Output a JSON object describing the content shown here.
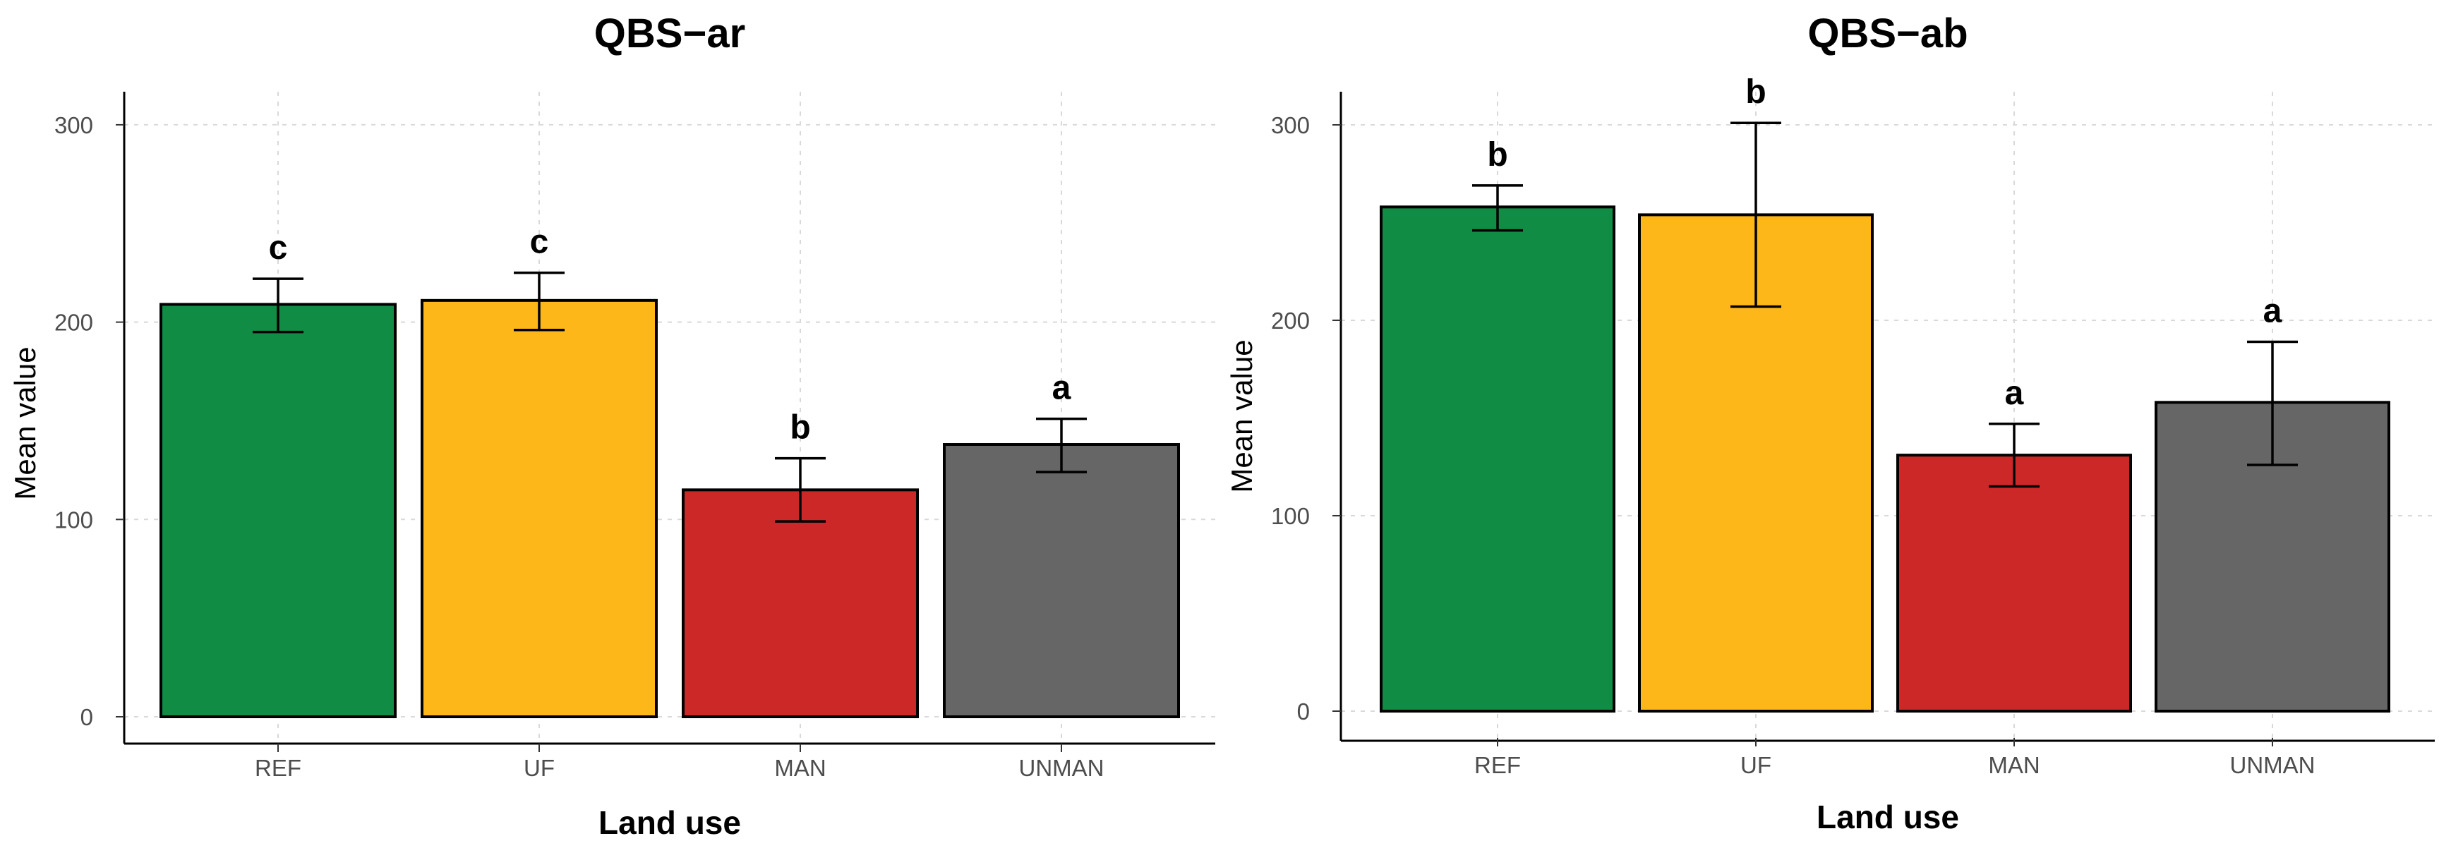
{
  "chart_data": [
    {
      "type": "bar",
      "title": "QBS−ar",
      "xlabel": "Land use",
      "ylabel": "Mean value",
      "categories": [
        "REF",
        "UF",
        "MAN",
        "UNMAN"
      ],
      "values": [
        209,
        211,
        115,
        138
      ],
      "error_low": [
        195,
        196,
        99,
        124
      ],
      "error_high": [
        222,
        225,
        131,
        151
      ],
      "significance_letters": [
        "c",
        "c",
        "b",
        "a"
      ],
      "colors": [
        "#118c44",
        "#fdb718",
        "#cd2828",
        "#666666"
      ],
      "yticks": [
        0,
        100,
        200,
        300
      ],
      "ylim": [
        0,
        310
      ],
      "grid": true
    },
    {
      "type": "bar",
      "title": "QBS−ab",
      "xlabel": "Land use",
      "ylabel": "Mean value",
      "categories": [
        "REF",
        "UF",
        "MAN",
        "UNMAN"
      ],
      "values": [
        258,
        254,
        131,
        158
      ],
      "error_low": [
        246,
        207,
        115,
        126
      ],
      "error_high": [
        269,
        301,
        147,
        189
      ],
      "significance_letters": [
        "b",
        "b",
        "a",
        "a"
      ],
      "colors": [
        "#118c44",
        "#fdb718",
        "#cd2828",
        "#666666"
      ],
      "yticks": [
        0,
        100,
        200,
        300
      ],
      "ylim": [
        0,
        310
      ],
      "grid": true
    }
  ]
}
